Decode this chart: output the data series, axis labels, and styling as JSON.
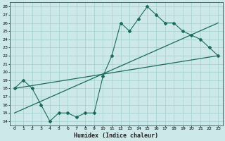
{
  "xlabel": "Humidex (Indice chaleur)",
  "background_color": "#cce8e8",
  "grid_color": "#a8d4d4",
  "line_color": "#1a6b5a",
  "xlim": [
    -0.5,
    23.5
  ],
  "ylim": [
    13.5,
    28.5
  ],
  "xticks": [
    0,
    1,
    2,
    3,
    4,
    5,
    6,
    7,
    8,
    9,
    10,
    11,
    12,
    13,
    14,
    15,
    16,
    17,
    18,
    19,
    20,
    21,
    22,
    23
  ],
  "yticks": [
    14,
    15,
    16,
    17,
    18,
    19,
    20,
    21,
    22,
    23,
    24,
    25,
    26,
    27,
    28
  ],
  "line1_x": [
    0,
    1,
    2,
    3,
    4,
    5,
    6,
    7,
    8,
    9,
    10,
    11,
    12,
    13,
    14,
    15,
    16,
    17,
    18,
    19,
    20,
    21,
    22,
    23
  ],
  "line1_y": [
    18,
    19,
    18,
    16,
    14,
    15,
    15,
    14.5,
    15,
    15,
    19.5,
    22,
    26,
    25,
    26.5,
    28,
    27,
    26,
    26,
    25,
    24.5,
    24,
    23,
    22
  ],
  "line2_x": [
    0,
    23
  ],
  "line2_y": [
    18,
    22
  ],
  "line3_x": [
    0,
    23
  ],
  "line3_y": [
    15,
    26
  ],
  "marker_x": [
    0,
    1,
    2,
    3,
    4,
    5,
    6,
    7,
    8,
    9,
    10,
    11,
    12,
    13,
    14,
    15,
    16,
    17,
    18,
    19,
    20,
    21,
    22,
    23
  ],
  "marker_y": [
    18,
    19,
    18,
    16,
    14,
    15,
    15,
    14.5,
    15,
    15,
    19.5,
    22,
    26,
    25,
    26.5,
    28,
    27,
    26,
    26,
    25,
    24.5,
    24,
    23,
    22
  ]
}
